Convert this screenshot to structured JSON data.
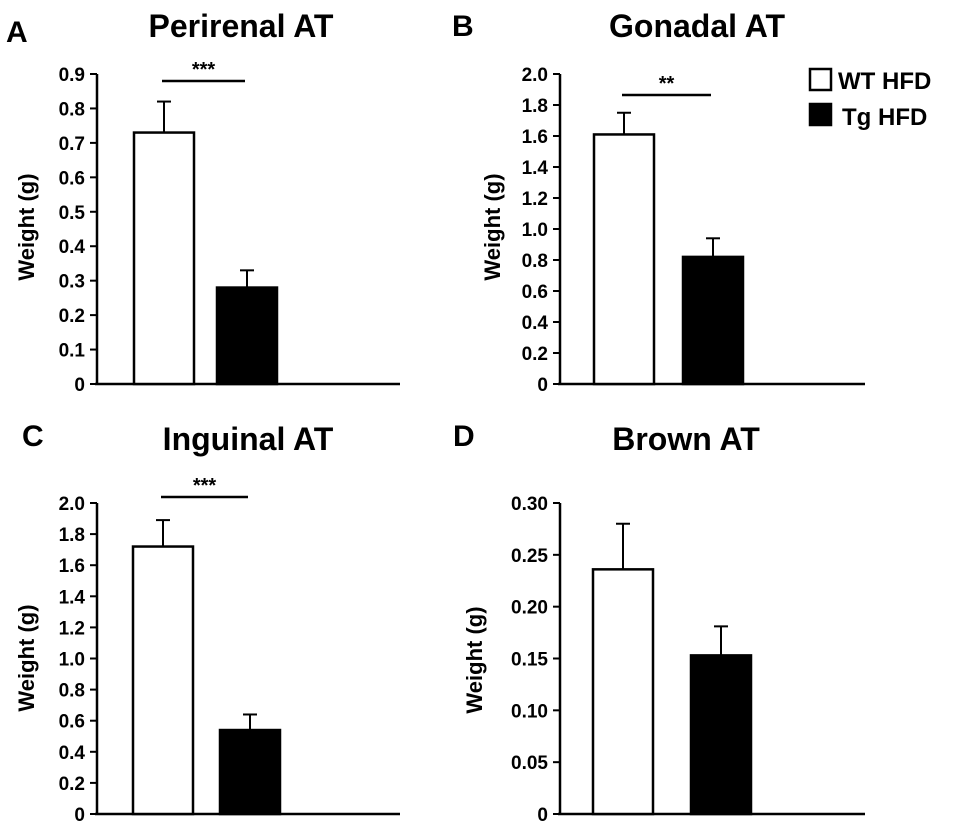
{
  "legend": {
    "items": [
      {
        "label": "WT HFD",
        "fill": "#ffffff"
      },
      {
        "label": "Tg HFD",
        "fill": "#000000"
      }
    ]
  },
  "chart_data": [
    {
      "type": "bar",
      "panel": "A",
      "title": "Perirenal AT",
      "ylabel": "Weight (g)",
      "xlabel": "",
      "categories": [
        "WT HFD",
        "Tg HFD"
      ],
      "values": [
        0.73,
        0.28
      ],
      "errors": [
        0.09,
        0.05
      ],
      "ylim": [
        0,
        0.9
      ],
      "yticks": [
        "0",
        "0.1",
        "0.2",
        "0.3",
        "0.4",
        "0.5",
        "0.6",
        "0.7",
        "0.8",
        "0.9"
      ],
      "significance": "***",
      "colors": [
        "#ffffff",
        "#000000"
      ]
    },
    {
      "type": "bar",
      "panel": "B",
      "title": "Gonadal AT",
      "ylabel": "Weight (g)",
      "xlabel": "",
      "categories": [
        "WT HFD",
        "Tg HFD"
      ],
      "values": [
        1.61,
        0.82
      ],
      "errors": [
        0.14,
        0.12
      ],
      "ylim": [
        0,
        2.0
      ],
      "yticks": [
        "0",
        "0.2",
        "0.4",
        "0.6",
        "0.8",
        "1.0",
        "1.2",
        "1.4",
        "1.6",
        "1.8",
        "2.0"
      ],
      "significance": "**",
      "colors": [
        "#ffffff",
        "#000000"
      ]
    },
    {
      "type": "bar",
      "panel": "C",
      "title": "Inguinal AT",
      "ylabel": "Weight (g)",
      "xlabel": "",
      "categories": [
        "WT HFD",
        "Tg HFD"
      ],
      "values": [
        1.72,
        0.54
      ],
      "errors": [
        0.17,
        0.1
      ],
      "ylim": [
        0,
        2.0
      ],
      "yticks": [
        "0",
        "0.2",
        "0.4",
        "0.6",
        "0.8",
        "1.0",
        "1.2",
        "1.4",
        "1.6",
        "1.8",
        "2.0"
      ],
      "significance": "***",
      "colors": [
        "#ffffff",
        "#000000"
      ]
    },
    {
      "type": "bar",
      "panel": "D",
      "title": "Brown AT",
      "ylabel": "Weight (g)",
      "xlabel": "",
      "categories": [
        "WT HFD",
        "Tg HFD"
      ],
      "values": [
        0.236,
        0.153
      ],
      "errors": [
        0.044,
        0.028
      ],
      "ylim": [
        0,
        0.3
      ],
      "yticks": [
        "0",
        "0.05",
        "0.10",
        "0.15",
        "0.20",
        "0.25",
        "0.30"
      ],
      "significance": "",
      "colors": [
        "#ffffff",
        "#000000"
      ]
    }
  ]
}
